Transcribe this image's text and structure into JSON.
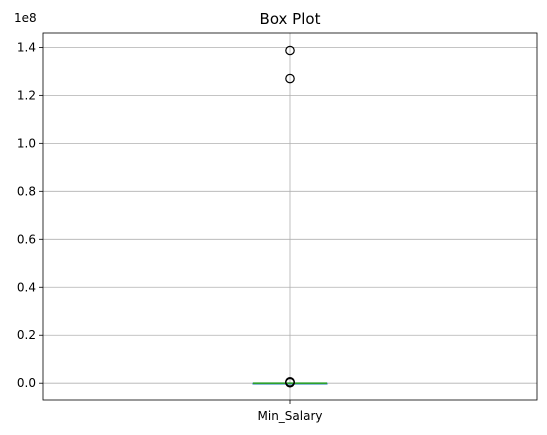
{
  "chart_data": {
    "type": "box",
    "title": "Box Plot",
    "categories": [
      "Min_Salary"
    ],
    "y_offset_label": "1e8",
    "y_scale": 100000000,
    "ylim": [
      -0.07,
      1.46
    ],
    "y_ticks": [
      {
        "value": 0.0,
        "label": "0.0"
      },
      {
        "value": 0.2,
        "label": "0.2"
      },
      {
        "value": 0.4,
        "label": "0.4"
      },
      {
        "value": 0.6,
        "label": "0.6"
      },
      {
        "value": 0.8,
        "label": "0.8"
      },
      {
        "value": 1.0,
        "label": "1.0"
      },
      {
        "value": 1.2,
        "label": "1.2"
      },
      {
        "value": 1.4,
        "label": "1.4"
      }
    ],
    "grid": true,
    "box": {
      "category": "Min_Salary",
      "q1": 0.0,
      "median": 0.0,
      "q3": 0.0,
      "whisker_low": 0.0,
      "whisker_high": 0.0,
      "outliers": [
        1.387,
        1.27,
        0.006,
        0.004,
        0.003,
        0.002
      ]
    },
    "colors": {
      "median": "#2ca02c",
      "box": "#1f77b4",
      "outlier_edge": "#000000",
      "grid": "#b0b0b0"
    }
  }
}
